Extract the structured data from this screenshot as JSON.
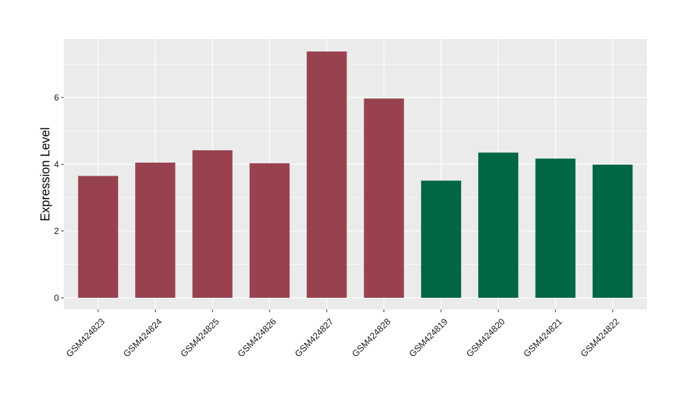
{
  "chart_data": {
    "type": "bar",
    "title": "",
    "xlabel": "",
    "ylabel": "Expression Level",
    "ylim": [
      -0.35,
      7.75
    ],
    "yticks": [
      0,
      2,
      4,
      6
    ],
    "grid": true,
    "legend": "none",
    "background": "#ebebeb",
    "gridline_color": "#ffffff",
    "categories": [
      "GSM424823",
      "GSM424824",
      "GSM424825",
      "GSM424826",
      "GSM424827",
      "GSM424828",
      "GSM424819",
      "GSM424820",
      "GSM424821",
      "GSM424822"
    ],
    "values": [
      3.65,
      4.05,
      4.42,
      4.03,
      7.38,
      5.97,
      3.51,
      4.35,
      4.17,
      3.99
    ],
    "colors": [
      "#99424f",
      "#99424f",
      "#99424f",
      "#99424f",
      "#99424f",
      "#99424f",
      "#006644",
      "#006644",
      "#006644",
      "#006644"
    ]
  }
}
